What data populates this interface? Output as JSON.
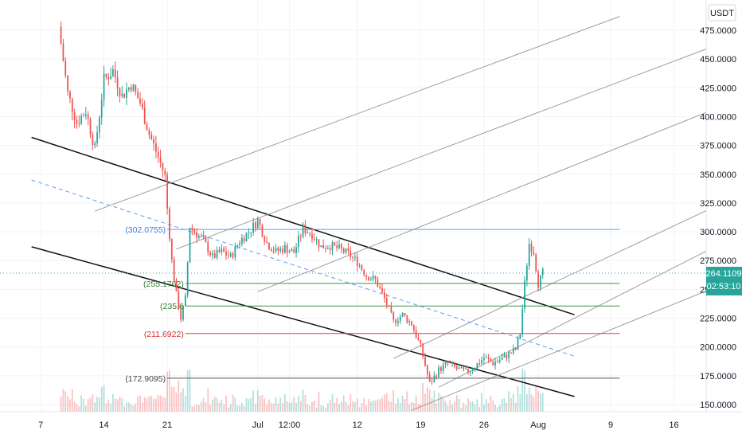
{
  "chart_data": {
    "type": "candlestick",
    "currency_label": "USDT",
    "y_range": [
      143,
      480
    ],
    "y_ticks": [
      "475.0000",
      "450.0000",
      "425.0000",
      "400.0000",
      "375.0000",
      "350.0000",
      "325.0000",
      "300.0000",
      "275.0000",
      "250.0000",
      "225.0000",
      "200.0000",
      "175.0000",
      "150.0000"
    ],
    "x_range": [
      "2021-06-05",
      "2021-08-20"
    ],
    "x_ticks": [
      {
        "label": "7",
        "date": "2021-06-07"
      },
      {
        "label": "14",
        "date": "2021-06-14"
      },
      {
        "label": "21",
        "date": "2021-06-21"
      },
      {
        "label": "Jul",
        "date": "2021-07-01"
      },
      {
        "label": "12:00",
        "date": "2021-07-04T12:00"
      },
      {
        "label": "12",
        "date": "2021-07-12"
      },
      {
        "label": "19",
        "date": "2021-07-19"
      },
      {
        "label": "26",
        "date": "2021-07-26"
      },
      {
        "label": "Aug",
        "date": "2021-08-01"
      },
      {
        "label": "9",
        "date": "2021-08-09"
      },
      {
        "label": "16",
        "date": "2021-08-16"
      }
    ],
    "last_price": {
      "value": "264.1109",
      "countdown": "02:53:10",
      "price": 264.1109
    },
    "price_path": [
      {
        "date": "2021-06-09",
        "price": 478
      },
      {
        "date": "2021-06-10",
        "price": 420
      },
      {
        "date": "2021-06-11",
        "price": 395
      },
      {
        "date": "2021-06-12",
        "price": 405
      },
      {
        "date": "2021-06-13",
        "price": 372
      },
      {
        "date": "2021-06-14",
        "price": 432
      },
      {
        "date": "2021-06-15",
        "price": 440
      },
      {
        "date": "2021-06-16",
        "price": 418
      },
      {
        "date": "2021-06-17",
        "price": 428
      },
      {
        "date": "2021-06-18",
        "price": 412
      },
      {
        "date": "2021-06-19",
        "price": 385
      },
      {
        "date": "2021-06-20",
        "price": 365
      },
      {
        "date": "2021-06-20T18:00",
        "price": 348
      },
      {
        "date": "2021-06-21",
        "price": 320
      },
      {
        "date": "2021-06-21T12:00",
        "price": 275
      },
      {
        "date": "2021-06-22",
        "price": 245
      },
      {
        "date": "2021-06-22T12:00",
        "price": 225
      },
      {
        "date": "2021-06-23",
        "price": 242
      },
      {
        "date": "2021-06-23T12:00",
        "price": 305
      },
      {
        "date": "2021-06-24",
        "price": 300
      },
      {
        "date": "2021-06-25",
        "price": 292
      },
      {
        "date": "2021-06-26",
        "price": 278
      },
      {
        "date": "2021-06-27",
        "price": 283
      },
      {
        "date": "2021-06-28",
        "price": 278
      },
      {
        "date": "2021-06-29",
        "price": 292
      },
      {
        "date": "2021-06-30",
        "price": 300
      },
      {
        "date": "2021-07-01",
        "price": 310
      },
      {
        "date": "2021-07-02",
        "price": 290
      },
      {
        "date": "2021-07-03",
        "price": 283
      },
      {
        "date": "2021-07-04",
        "price": 286
      },
      {
        "date": "2021-07-05",
        "price": 282
      },
      {
        "date": "2021-07-06",
        "price": 303
      },
      {
        "date": "2021-07-07",
        "price": 298
      },
      {
        "date": "2021-07-08",
        "price": 287
      },
      {
        "date": "2021-07-09",
        "price": 288
      },
      {
        "date": "2021-07-10",
        "price": 285
      },
      {
        "date": "2021-07-11",
        "price": 281
      },
      {
        "date": "2021-07-12",
        "price": 274
      },
      {
        "date": "2021-07-13",
        "price": 262
      },
      {
        "date": "2021-07-14",
        "price": 258
      },
      {
        "date": "2021-07-15",
        "price": 242
      },
      {
        "date": "2021-07-16",
        "price": 222
      },
      {
        "date": "2021-07-17",
        "price": 228
      },
      {
        "date": "2021-07-18",
        "price": 220
      },
      {
        "date": "2021-07-19",
        "price": 200
      },
      {
        "date": "2021-07-20",
        "price": 168
      },
      {
        "date": "2021-07-21",
        "price": 180
      },
      {
        "date": "2021-07-22",
        "price": 186
      },
      {
        "date": "2021-07-23",
        "price": 181
      },
      {
        "date": "2021-07-24",
        "price": 178
      },
      {
        "date": "2021-07-25",
        "price": 183
      },
      {
        "date": "2021-07-26",
        "price": 191
      },
      {
        "date": "2021-07-27",
        "price": 186
      },
      {
        "date": "2021-07-28",
        "price": 190
      },
      {
        "date": "2021-07-29",
        "price": 195
      },
      {
        "date": "2021-07-29T12:00",
        "price": 198
      },
      {
        "date": "2021-07-30",
        "price": 212
      },
      {
        "date": "2021-07-30T12:00",
        "price": 255
      },
      {
        "date": "2021-07-31",
        "price": 290
      },
      {
        "date": "2021-07-31T12:00",
        "price": 283
      },
      {
        "date": "2021-08-01",
        "price": 255
      },
      {
        "date": "2021-08-01T12:00",
        "price": 264.1
      }
    ],
    "levels": [
      {
        "label": "(302.0755)",
        "value": 302.0755,
        "start": "2021-06-21",
        "color": "#5b9cf0",
        "label_color": "#3d7ed8"
      },
      {
        "label": "(255.1762)",
        "value": 255.1762,
        "start": "2021-06-23",
        "color": "#3a9a3a",
        "label_color": "#2e7d2e"
      },
      {
        "label": "(235.6",
        "value": 235.6,
        "start": "2021-06-23",
        "color": "#3a9a3a",
        "label_color": "#2e7d2e"
      },
      {
        "label": "(211.6922)",
        "value": 211.6922,
        "start": "2021-06-23",
        "color": "#e53935",
        "label_color": "#d32f2f"
      },
      {
        "label": "(172.9095)",
        "value": 172.9095,
        "start": "2021-06-21",
        "color": "#555555",
        "label_color": "#444444"
      }
    ],
    "lines": [
      {
        "kind": "channel",
        "start": [
          "2021-06-06",
          382
        ],
        "end": [
          "2021-08-05",
          228
        ],
        "color": "#111111"
      },
      {
        "kind": "channel",
        "start": [
          "2021-06-06",
          287
        ],
        "end": [
          "2021-08-05",
          157
        ],
        "color": "#111111"
      },
      {
        "kind": "median-dashed",
        "start": [
          "2021-06-06",
          345
        ],
        "end": [
          "2021-08-05",
          192
        ],
        "color": "#5b9cf0"
      },
      {
        "kind": "pitchfork",
        "start": [
          "2021-06-13",
          318
        ],
        "end": [
          "2021-08-10",
          487
        ],
        "color": "#9e9e9e"
      },
      {
        "kind": "pitchfork",
        "start": [
          "2021-06-22",
          285
        ],
        "end": [
          "2021-08-20",
          460
        ],
        "color": "#9e9e9e"
      },
      {
        "kind": "pitchfork",
        "start": [
          "2021-07-01",
          248
        ],
        "end": [
          "2021-08-20",
          405
        ],
        "color": "#9e9e9e"
      },
      {
        "kind": "pitchfork",
        "start": [
          "2021-07-16",
          190
        ],
        "end": [
          "2021-08-20",
          320
        ],
        "color": "#9e9e9e"
      },
      {
        "kind": "pitchfork",
        "start": [
          "2021-07-21",
          165
        ],
        "end": [
          "2021-08-20",
          285
        ],
        "color": "#9e9e9e"
      },
      {
        "kind": "pitchfork",
        "start": [
          "2021-07-18",
          145
        ],
        "end": [
          "2021-08-20",
          250
        ],
        "color": "#9e9e9e"
      }
    ],
    "colors": {
      "up": "#26a69a",
      "down": "#ef5350",
      "last_price_tag": "#26a69a",
      "grid": "#f0f3fa",
      "axis_border": "#e0e3eb"
    }
  }
}
